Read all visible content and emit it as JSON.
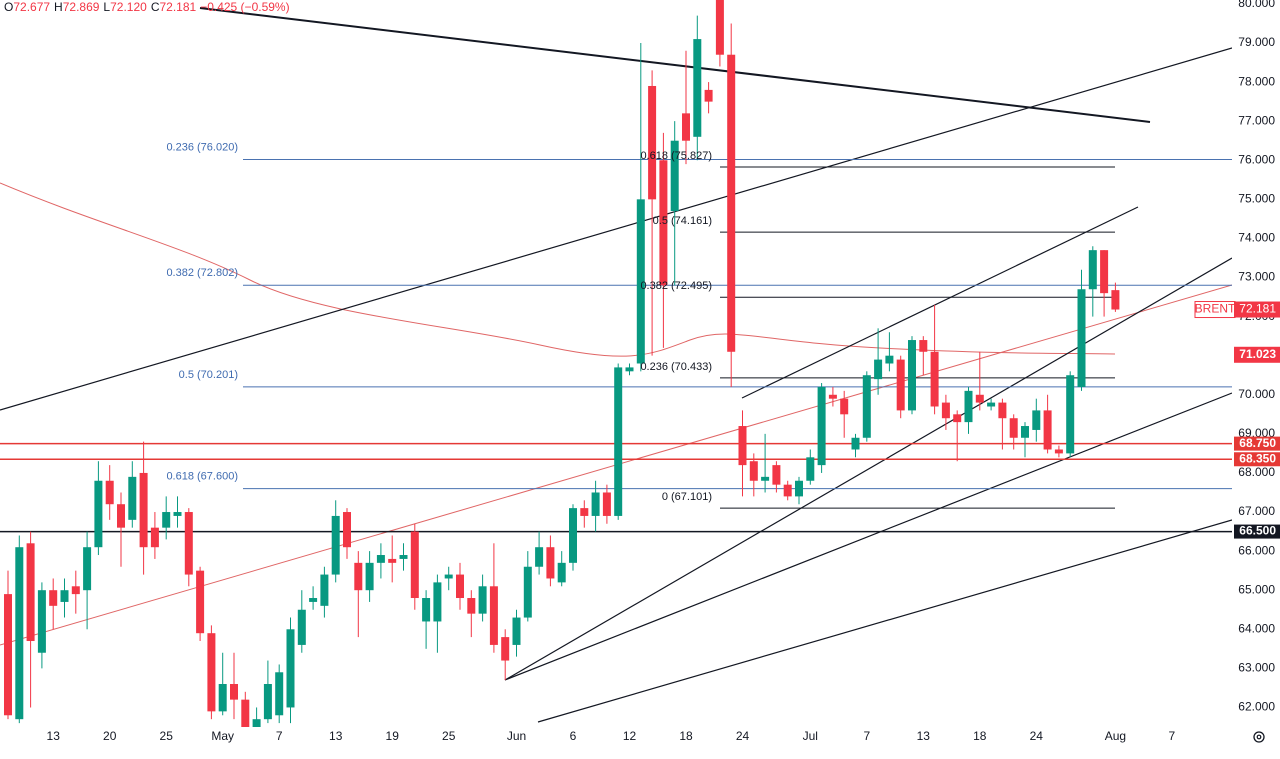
{
  "chart_data": {
    "type": "candlestick",
    "header": {
      "items": [
        {
          "key": "O",
          "value": "72.677"
        },
        {
          "key": "H",
          "value": "72.869"
        },
        {
          "key": "L",
          "value": "72.120"
        },
        {
          "key": "C",
          "value": "72.181"
        }
      ],
      "change": "−0.425 (−0.59%)"
    },
    "categories": [
      null,
      null,
      null,
      null,
      "13",
      null,
      null,
      null,
      null,
      "20",
      null,
      null,
      null,
      null,
      "25",
      null,
      null,
      null,
      null,
      "May",
      null,
      null,
      null,
      null,
      "7",
      null,
      null,
      null,
      null,
      "13",
      null,
      null,
      null,
      null,
      "19",
      null,
      null,
      null,
      null,
      "25",
      null,
      null,
      null,
      null,
      null,
      "Jun",
      null,
      null,
      null,
      null,
      "6",
      null,
      null,
      null,
      null,
      "12",
      null,
      null,
      null,
      null,
      "18",
      null,
      null,
      null,
      null,
      "24",
      null,
      null,
      null,
      null,
      null,
      "Jul",
      null,
      null,
      null,
      null,
      "7",
      null,
      null,
      null,
      null,
      "13",
      null,
      null,
      null,
      null,
      "18",
      null,
      null,
      null,
      null,
      "24",
      null,
      null,
      null,
      null,
      null,
      null,
      "Aug",
      null,
      null,
      null,
      null,
      "7",
      null,
      null,
      null,
      null
    ],
    "open": [
      64.9,
      61.7,
      66.2,
      63.4,
      65.0,
      64.7,
      65.1,
      65.0,
      66.1,
      67.8,
      67.2,
      66.8,
      68.0,
      66.6,
      66.6,
      66.9,
      67.0,
      65.5,
      63.9,
      61.9,
      62.6,
      62.2,
      61.3,
      61.7,
      61.8,
      62.0,
      63.6,
      64.7,
      64.6,
      65.4,
      67.0,
      65.7,
      65.0,
      65.7,
      65.8,
      65.8,
      66.5,
      64.2,
      64.2,
      65.3,
      65.4,
      64.8,
      64.4,
      65.1,
      63.8,
      63.6,
      64.3,
      65.6,
      66.1,
      65.2,
      65.7,
      67.1,
      66.9,
      67.5,
      66.9,
      70.6,
      70.8,
      77.9,
      76.0,
      74.7,
      77.2,
      76.6,
      77.8,
      80.2,
      78.7,
      69.2,
      68.3,
      67.8,
      68.2,
      67.7,
      67.4,
      67.8,
      68.2,
      70.0,
      69.9,
      68.6,
      68.9,
      70.4,
      70.8,
      70.9,
      69.6,
      71.4,
      71.1,
      69.8,
      69.5,
      69.3,
      70.0,
      69.7,
      69.8,
      69.4,
      68.9,
      69.1,
      69.6,
      68.6,
      68.5,
      70.2,
      72.7,
      73.7,
      72.677,
      null,
      null,
      null,
      null,
      null,
      null,
      null,
      null,
      null
    ],
    "high": [
      65.5,
      66.4,
      66.5,
      65.2,
      65.3,
      65.3,
      65.5,
      66.5,
      68.3,
      68.2,
      67.5,
      68.3,
      68.8,
      67.0,
      67.4,
      67.4,
      67.1,
      65.6,
      64.1,
      63.4,
      63.4,
      62.4,
      62.0,
      63.2,
      63.1,
      64.3,
      65.0,
      65.1,
      65.6,
      67.3,
      67.1,
      66.0,
      66.0,
      66.2,
      66.4,
      66.2,
      66.7,
      65.0,
      65.4,
      65.6,
      65.7,
      65.0,
      65.4,
      66.2,
      64.0,
      64.5,
      66.0,
      66.5,
      66.4,
      66.0,
      67.2,
      67.3,
      67.8,
      67.7,
      70.8,
      70.8,
      79.0,
      78.3,
      76.7,
      77.0,
      78.8,
      79.7,
      78.0,
      81.0,
      79.5,
      69.6,
      68.5,
      69.0,
      68.3,
      67.8,
      67.9,
      68.6,
      70.3,
      70.2,
      70.1,
      69.0,
      70.6,
      71.7,
      71.6,
      71.0,
      71.5,
      71.5,
      72.3,
      70.0,
      69.6,
      70.2,
      71.1,
      69.9,
      69.9,
      69.5,
      69.3,
      69.9,
      70.0,
      68.7,
      70.6,
      73.2,
      73.8,
      73.7,
      72.869,
      null,
      null,
      null,
      null,
      null,
      null,
      null,
      null,
      null
    ],
    "low": [
      61.7,
      61.6,
      62.0,
      63.0,
      64.0,
      64.3,
      64.4,
      64.0,
      65.9,
      66.8,
      65.6,
      66.6,
      65.4,
      65.8,
      66.3,
      66.6,
      65.1,
      63.7,
      61.7,
      61.8,
      61.7,
      60.8,
      60.5,
      61.6,
      61.6,
      61.6,
      63.4,
      64.5,
      64.3,
      65.2,
      65.8,
      63.8,
      64.7,
      65.3,
      65.2,
      65.5,
      64.5,
      63.5,
      63.4,
      65.0,
      64.5,
      63.8,
      64.2,
      63.4,
      62.7,
      63.3,
      64.2,
      65.4,
      65.1,
      65.1,
      65.5,
      66.6,
      66.5,
      66.7,
      66.8,
      70.5,
      70.6,
      71.0,
      71.2,
      72.8,
      75.9,
      76.0,
      77.2,
      78.4,
      70.2,
      67.4,
      67.4,
      67.5,
      67.5,
      67.3,
      67.2,
      67.7,
      68.0,
      69.7,
      68.9,
      68.4,
      68.8,
      70.0,
      70.6,
      69.4,
      69.5,
      70.5,
      69.5,
      69.1,
      68.3,
      69.0,
      69.6,
      69.6,
      68.6,
      68.6,
      68.4,
      68.8,
      68.5,
      68.4,
      68.4,
      70.1,
      72.0,
      72.0,
      72.12,
      null,
      null,
      null,
      null,
      null,
      null,
      null,
      null,
      null
    ],
    "close": [
      61.8,
      66.1,
      63.7,
      65.0,
      64.6,
      65.0,
      64.9,
      66.1,
      67.8,
      67.2,
      66.6,
      67.9,
      66.1,
      66.1,
      67.0,
      67.0,
      65.4,
      63.9,
      61.9,
      62.6,
      62.2,
      61.3,
      61.7,
      62.6,
      62.9,
      64.0,
      64.5,
      64.8,
      65.4,
      66.9,
      66.1,
      65.0,
      65.7,
      65.9,
      65.7,
      65.9,
      64.8,
      64.8,
      65.2,
      65.4,
      64.8,
      64.4,
      65.1,
      63.6,
      63.2,
      64.3,
      65.6,
      66.1,
      65.3,
      65.7,
      67.1,
      66.9,
      67.5,
      66.9,
      70.7,
      70.7,
      75.0,
      75.0,
      72.8,
      76.5,
      76.5,
      79.1,
      77.5,
      78.7,
      71.1,
      68.2,
      67.8,
      67.9,
      67.7,
      67.4,
      67.8,
      68.4,
      70.2,
      69.9,
      69.5,
      68.9,
      70.5,
      70.9,
      71.0,
      69.6,
      71.4,
      71.1,
      69.7,
      69.4,
      69.3,
      70.1,
      69.8,
      69.8,
      69.4,
      68.9,
      69.2,
      69.6,
      68.6,
      68.5,
      70.5,
      72.7,
      73.7,
      72.6,
      72.181,
      null,
      null,
      null,
      null,
      null,
      null,
      null,
      null,
      null
    ],
    "up_color": "#089981",
    "down_color": "#f23645",
    "ylim": [
      61.5,
      80.1
    ],
    "yticks": [
      {
        "value": 62,
        "label": "62.000"
      },
      {
        "value": 63,
        "label": "63.000"
      },
      {
        "value": 64,
        "label": "64.000"
      },
      {
        "value": 65,
        "label": "65.000"
      },
      {
        "value": 66,
        "label": "66.000"
      },
      {
        "value": 67,
        "label": "67.000"
      },
      {
        "value": 68,
        "label": "68.000"
      },
      {
        "value": 69,
        "label": "69.000"
      },
      {
        "value": 70,
        "label": "70.000"
      },
      {
        "value": 71,
        "label": "71.000"
      },
      {
        "value": 72,
        "label": "72.000"
      },
      {
        "value": 73,
        "label": "73.000"
      },
      {
        "value": 74,
        "label": "74.000"
      },
      {
        "value": 75,
        "label": "75.000"
      },
      {
        "value": 76,
        "label": "76.000"
      },
      {
        "value": 77,
        "label": "77.000"
      },
      {
        "value": 78,
        "label": "78.000"
      },
      {
        "value": 79,
        "label": "79.000"
      },
      {
        "value": 80,
        "label": "80.000"
      }
    ],
    "levels": [
      {
        "value": 68.75,
        "label": "68.750",
        "color": "#e53935"
      },
      {
        "value": 68.35,
        "label": "68.350",
        "color": "#e53935"
      },
      {
        "value": 66.5,
        "label": "66.500",
        "color": "#131722"
      }
    ],
    "fib_left": [
      {
        "value": 76.02,
        "label": "0.236 (76.020)"
      },
      {
        "value": 72.802,
        "label": "0.382 (72.802)"
      },
      {
        "value": 70.201,
        "label": "0.5 (70.201)"
      },
      {
        "value": 67.6,
        "label": "0.618 (67.600)"
      }
    ],
    "fib_right": [
      {
        "value": 75.827,
        "label": "0.618 (75.827)"
      },
      {
        "value": 74.161,
        "label": "0.5 (74.161)"
      },
      {
        "value": 72.495,
        "label": "0.382 (72.495)"
      },
      {
        "value": 70.433,
        "label": "0.236 (70.433)"
      },
      {
        "value": 67.101,
        "label": "0 (67.101)"
      }
    ],
    "last_price": {
      "symbol": "BRENT",
      "value": 72.181,
      "label": "72.181"
    },
    "ma_label": {
      "value": 71.023,
      "label": "71.023"
    }
  }
}
